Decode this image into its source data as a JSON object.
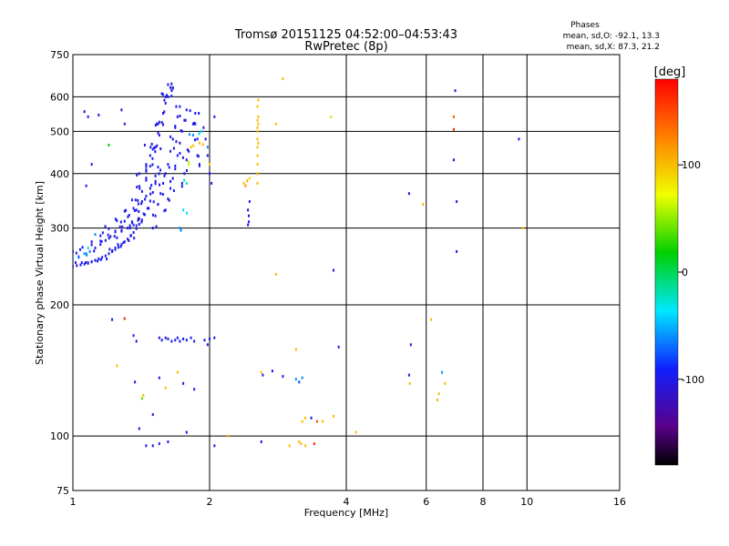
{
  "header": {
    "title": "Tromsø 20151125 04:52:00–04:53:43",
    "subtitle": "RwPretec (8p)",
    "stats_heading": "Phases",
    "stats_o": "mean, sd,O: -92.1, 13.3",
    "stats_x": "mean, sd,X:  87.3, 21.2"
  },
  "chart_data": {
    "type": "scatter",
    "xlabel": "Frequency [MHz]",
    "ylabel": "Stationary phase Virtual Height [km]",
    "x_scale": "log",
    "y_scale": "log",
    "xlim": [
      1,
      16
    ],
    "ylim": [
      75,
      750
    ],
    "x_ticks": [
      1,
      2,
      4,
      6,
      8,
      10,
      16
    ],
    "y_ticks": [
      75,
      100,
      200,
      300,
      400,
      500,
      600,
      750
    ],
    "x_gridlines": [
      2,
      4,
      6,
      8,
      10
    ],
    "y_gridlines": [
      100,
      200,
      300,
      400,
      500,
      600
    ],
    "colorbar": {
      "label": "[deg]",
      "range": [
        -180,
        180
      ],
      "ticks": [
        -100,
        0,
        100
      ]
    },
    "trace_O": {
      "description_values": "dense echo trace, phase ~ -100 deg",
      "points": [
        [
          1.0,
          245,
          -100
        ],
        [
          1.02,
          246,
          -105
        ],
        [
          1.04,
          247,
          -95
        ],
        [
          1.06,
          248,
          -100
        ],
        [
          1.08,
          249,
          -110
        ],
        [
          1.1,
          251,
          -98
        ],
        [
          1.12,
          253,
          -102
        ],
        [
          1.14,
          255,
          -100
        ],
        [
          1.16,
          257,
          -96
        ],
        [
          1.18,
          259,
          -104
        ],
        [
          1.2,
          262,
          -100
        ],
        [
          1.22,
          265,
          -108
        ],
        [
          1.24,
          268,
          -97
        ],
        [
          1.26,
          271,
          -103
        ],
        [
          1.28,
          275,
          -100
        ],
        [
          1.3,
          279,
          -95
        ],
        [
          1.32,
          283,
          -106
        ],
        [
          1.34,
          288,
          -100
        ],
        [
          1.36,
          293,
          -102
        ],
        [
          1.38,
          299,
          -98
        ],
        [
          1.4,
          306,
          -100
        ],
        [
          1.42,
          313,
          -110
        ],
        [
          1.44,
          322,
          -95
        ],
        [
          1.46,
          333,
          -101
        ],
        [
          1.48,
          346,
          -99
        ],
        [
          1.5,
          362,
          -104
        ],
        [
          1.52,
          384,
          -100
        ],
        [
          1.54,
          414,
          -96
        ],
        [
          1.56,
          456,
          -105
        ],
        [
          1.58,
          518,
          -100
        ],
        [
          1.6,
          600,
          -98
        ],
        [
          1.62,
          640,
          -103
        ],
        [
          1.0,
          255,
          -60
        ],
        [
          1.03,
          258,
          -70
        ],
        [
          1.06,
          262,
          -55
        ],
        [
          1.09,
          265,
          -65
        ],
        [
          1.12,
          270,
          -100
        ],
        [
          1.15,
          275,
          -95
        ],
        [
          1.18,
          281,
          -102
        ],
        [
          1.21,
          287,
          -100
        ],
        [
          1.24,
          294,
          -98
        ],
        [
          1.27,
          302,
          -104
        ],
        [
          1.3,
          311,
          -100
        ],
        [
          1.33,
          321,
          -96
        ],
        [
          1.36,
          333,
          -101
        ],
        [
          1.39,
          347,
          -99
        ],
        [
          1.42,
          364,
          -103
        ],
        [
          1.45,
          386,
          -100
        ],
        [
          1.48,
          416,
          -97
        ],
        [
          1.51,
          458,
          -105
        ],
        [
          1.54,
          520,
          -100
        ],
        [
          1.57,
          610,
          -98
        ],
        [
          1.0,
          265,
          -100
        ],
        [
          1.05,
          271,
          -95
        ],
        [
          1.1,
          279,
          -102
        ],
        [
          1.15,
          288,
          -100
        ],
        [
          1.2,
          299,
          -104
        ],
        [
          1.25,
          312,
          -96
        ],
        [
          1.3,
          328,
          -100
        ],
        [
          1.35,
          348,
          -98
        ],
        [
          1.4,
          374,
          -103
        ],
        [
          1.45,
          408,
          -100
        ],
        [
          1.5,
          455,
          -97
        ],
        [
          1.55,
          525,
          -101
        ],
        [
          1.6,
          580,
          -100
        ],
        [
          1.65,
          620,
          -96
        ],
        [
          1.5,
          300,
          -100
        ],
        [
          1.52,
          320,
          -100
        ],
        [
          1.54,
          340,
          -105
        ],
        [
          1.56,
          360,
          -98
        ],
        [
          1.58,
          380,
          -102
        ],
        [
          1.6,
          400,
          -100
        ],
        [
          1.62,
          420,
          -97
        ],
        [
          1.64,
          450,
          -103
        ],
        [
          1.66,
          480,
          -100
        ],
        [
          1.68,
          510,
          -99
        ],
        [
          1.7,
          540,
          -104
        ],
        [
          1.72,
          570,
          -100
        ],
        [
          1.6,
          330,
          -100
        ],
        [
          1.62,
          350,
          -101
        ],
        [
          1.64,
          370,
          -98
        ],
        [
          1.66,
          390,
          -102
        ],
        [
          1.68,
          410,
          -100
        ],
        [
          1.7,
          440,
          -96
        ],
        [
          1.72,
          470,
          -103
        ],
        [
          1.74,
          500,
          -100
        ],
        [
          1.76,
          530,
          -98
        ],
        [
          1.78,
          560,
          -100
        ],
        [
          1.4,
          400,
          -100
        ],
        [
          1.45,
          420,
          -102
        ],
        [
          1.48,
          440,
          -98
        ],
        [
          1.52,
          460,
          -100
        ],
        [
          1.55,
          490,
          -104
        ],
        [
          1.58,
          550,
          -100
        ],
        [
          1.62,
          600,
          -97
        ],
        [
          1.66,
          630,
          -100
        ],
        [
          1.35,
          310,
          -100
        ],
        [
          1.38,
          330,
          -98
        ],
        [
          1.42,
          345,
          -103
        ],
        [
          1.45,
          355,
          -100
        ],
        [
          1.48,
          370,
          -99
        ],
        [
          1.52,
          395,
          -101
        ],
        [
          1.25,
          285,
          -100
        ],
        [
          1.28,
          295,
          -103
        ],
        [
          1.32,
          300,
          -97
        ],
        [
          1.36,
          305,
          -100
        ],
        [
          1.4,
          315,
          -102
        ],
        [
          1.72,
          300,
          -60
        ],
        [
          1.75,
          330,
          -40
        ],
        [
          1.78,
          380,
          -20
        ],
        [
          1.8,
          420,
          60
        ],
        [
          1.82,
          460,
          100
        ],
        [
          1.84,
          490,
          -60
        ],
        [
          1.86,
          520,
          -100
        ],
        [
          1.88,
          440,
          -100
        ],
        [
          1.9,
          470,
          100
        ],
        [
          1.92,
          500,
          -40
        ],
        [
          1.74,
          380,
          -100
        ],
        [
          1.76,
          400,
          -100
        ],
        [
          1.78,
          430,
          -100
        ],
        [
          1.8,
          450,
          -100
        ],
        [
          1.84,
          520,
          -100
        ],
        [
          1.86,
          550,
          -100
        ],
        [
          1.88,
          480,
          -100
        ],
        [
          1.9,
          420,
          -100
        ]
      ]
    },
    "scattered_points": [
      [
        1.06,
        555,
        -100
      ],
      [
        1.08,
        540,
        -100
      ],
      [
        1.14,
        545,
        -100
      ],
      [
        1.3,
        520,
        -100
      ],
      [
        1.28,
        560,
        -100
      ],
      [
        1.2,
        465,
        20
      ],
      [
        1.1,
        420,
        -100
      ],
      [
        1.07,
        375,
        -100
      ],
      [
        1.44,
        465,
        -100
      ],
      [
        1.12,
        290,
        -60
      ],
      [
        1.08,
        270,
        -40
      ],
      [
        1.15,
        280,
        -100
      ],
      [
        1.94,
        510,
        -100
      ],
      [
        1.96,
        480,
        -100
      ],
      [
        1.98,
        460,
        -60
      ],
      [
        2.05,
        540,
        -100
      ],
      [
        2.0,
        400,
        -100
      ],
      [
        2.02,
        380,
        -100
      ],
      [
        2.0,
        420,
        100
      ],
      [
        1.98,
        440,
        -100
      ],
      [
        2.38,
        380,
        100
      ],
      [
        2.4,
        375,
        120
      ],
      [
        2.42,
        385,
        110
      ],
      [
        2.45,
        390,
        90
      ],
      [
        2.43,
        305,
        -100
      ],
      [
        2.44,
        320,
        -110
      ],
      [
        2.45,
        345,
        -100
      ],
      [
        2.43,
        330,
        -120
      ],
      [
        2.44,
        310,
        -100
      ],
      [
        2.55,
        500,
        100
      ],
      [
        2.55,
        480,
        100
      ],
      [
        2.55,
        460,
        100
      ],
      [
        2.55,
        440,
        100
      ],
      [
        2.55,
        420,
        100
      ],
      [
        2.55,
        400,
        100
      ],
      [
        2.55,
        510,
        100
      ],
      [
        2.56,
        520,
        100
      ],
      [
        2.56,
        540,
        100
      ],
      [
        2.55,
        570,
        100
      ],
      [
        2.56,
        590,
        100
      ],
      [
        2.55,
        380,
        100
      ],
      [
        2.56,
        470,
        100
      ],
      [
        2.55,
        530,
        100
      ],
      [
        2.8,
        520,
        100
      ],
      [
        2.9,
        660,
        100
      ],
      [
        2.8,
        235,
        100
      ],
      [
        3.7,
        540,
        60
      ],
      [
        3.75,
        240,
        -100
      ],
      [
        5.5,
        360,
        -100
      ],
      [
        5.9,
        340,
        100
      ],
      [
        7.0,
        345,
        -100
      ],
      [
        6.9,
        430,
        -100
      ],
      [
        6.9,
        540,
        140
      ],
      [
        6.95,
        620,
        -100
      ],
      [
        7.0,
        265,
        -100
      ],
      [
        9.6,
        480,
        -100
      ],
      [
        9.8,
        300,
        100
      ],
      [
        6.9,
        505,
        160
      ],
      [
        1.22,
        185,
        -100
      ],
      [
        1.3,
        186,
        160
      ],
      [
        1.36,
        170,
        -100
      ],
      [
        1.38,
        165,
        -100
      ],
      [
        1.55,
        168,
        -100
      ],
      [
        1.57,
        166,
        -100
      ],
      [
        1.6,
        168,
        -100
      ],
      [
        1.62,
        167,
        -100
      ],
      [
        1.65,
        165,
        -100
      ],
      [
        1.68,
        166,
        -100
      ],
      [
        1.7,
        168,
        -100
      ],
      [
        1.72,
        165,
        -100
      ],
      [
        1.75,
        167,
        -100
      ],
      [
        1.78,
        166,
        -100
      ],
      [
        1.82,
        168,
        -100
      ],
      [
        1.85,
        165,
        -100
      ],
      [
        1.95,
        166,
        -100
      ],
      [
        2.0,
        167,
        -100
      ],
      [
        2.05,
        168,
        -100
      ],
      [
        1.98,
        162,
        -100
      ],
      [
        1.25,
        145,
        100
      ],
      [
        1.37,
        133,
        -100
      ],
      [
        1.43,
        124,
        100
      ],
      [
        1.42,
        122,
        40
      ],
      [
        1.5,
        112,
        -100
      ],
      [
        1.55,
        136,
        -100
      ],
      [
        1.6,
        129,
        100
      ],
      [
        1.7,
        140,
        100
      ],
      [
        1.75,
        132,
        -100
      ],
      [
        1.85,
        128,
        -100
      ],
      [
        1.4,
        104,
        -100
      ],
      [
        1.45,
        95,
        -100
      ],
      [
        1.5,
        95,
        -100
      ],
      [
        1.55,
        96,
        -100
      ],
      [
        1.62,
        97,
        -100
      ],
      [
        1.78,
        102,
        -100
      ],
      [
        2.05,
        95,
        -100
      ],
      [
        2.2,
        100,
        100
      ],
      [
        2.6,
        140,
        100
      ],
      [
        2.62,
        138,
        -100
      ],
      [
        2.75,
        141,
        -100
      ],
      [
        2.9,
        137,
        -100
      ],
      [
        3.1,
        135,
        -60
      ],
      [
        3.15,
        133,
        -80
      ],
      [
        3.2,
        136,
        -60
      ],
      [
        3.1,
        158,
        100
      ],
      [
        3.2,
        108,
        100
      ],
      [
        3.25,
        110,
        100
      ],
      [
        3.35,
        110,
        -100
      ],
      [
        3.45,
        108,
        140
      ],
      [
        3.55,
        108,
        100
      ],
      [
        3.75,
        111,
        100
      ],
      [
        3.85,
        160,
        -100
      ],
      [
        4.2,
        102,
        100
      ],
      [
        3.0,
        95,
        100
      ],
      [
        3.15,
        97,
        100
      ],
      [
        3.25,
        95,
        100
      ],
      [
        3.4,
        96,
        160
      ],
      [
        2.6,
        97,
        -100
      ],
      [
        3.18,
        96,
        100
      ],
      [
        5.5,
        138,
        -100
      ],
      [
        5.52,
        132,
        100
      ],
      [
        5.55,
        162,
        -100
      ],
      [
        6.5,
        140,
        -60
      ],
      [
        6.6,
        132,
        100
      ],
      [
        6.4,
        125,
        100
      ],
      [
        6.35,
        121,
        100
      ],
      [
        6.15,
        185,
        100
      ]
    ]
  }
}
